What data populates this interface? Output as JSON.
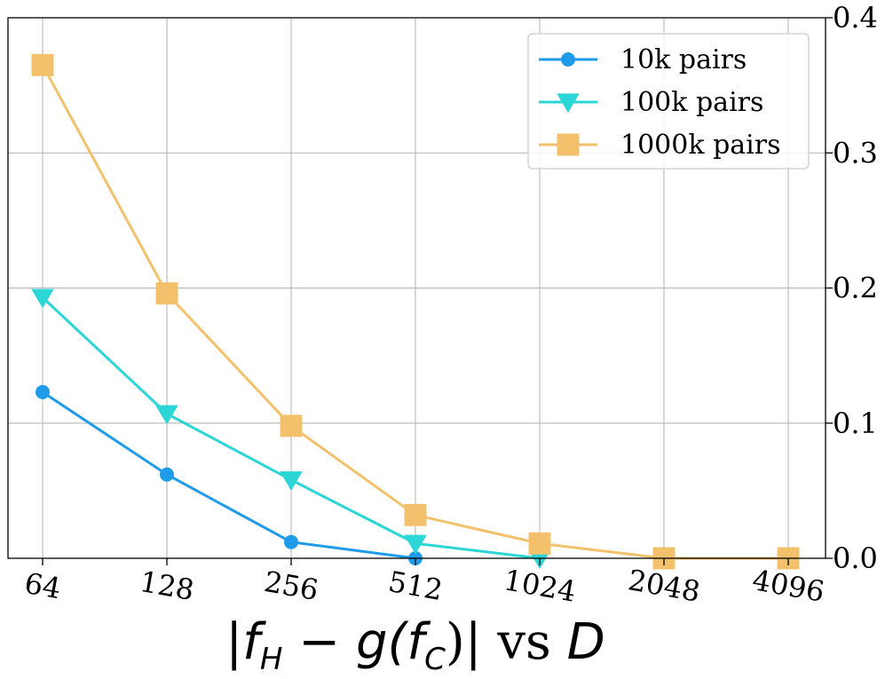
{
  "chart_data": {
    "type": "line",
    "title": "",
    "xlabel_parts": [
      "|f",
      "H",
      " − g(f",
      "C",
      ")| vs ",
      "D"
    ],
    "ylabel": "",
    "x_categories": [
      "64",
      "128",
      "256",
      "512",
      "1024",
      "2048",
      "4096"
    ],
    "y_ticks": [
      "0.0",
      "0.1",
      "0.2",
      "0.3",
      "0.4"
    ],
    "ylim": [
      0,
      0.4
    ],
    "y_axis_side": "right",
    "grid": true,
    "legend_position": "top-right",
    "series": [
      {
        "name": "10k pairs",
        "marker": "circle",
        "color": "#1f9bea",
        "values": [
          0.123,
          0.062,
          0.012,
          0.0,
          null,
          null,
          null
        ]
      },
      {
        "name": "100k pairs",
        "marker": "triangle-down",
        "color": "#2cd6d6",
        "values": [
          0.193,
          0.107,
          0.058,
          0.011,
          0.0,
          null,
          null
        ]
      },
      {
        "name": "1000k pairs",
        "marker": "square",
        "color": "#f3c16b",
        "values": [
          0.365,
          0.196,
          0.098,
          0.032,
          0.011,
          0.0,
          0.0
        ]
      }
    ]
  }
}
